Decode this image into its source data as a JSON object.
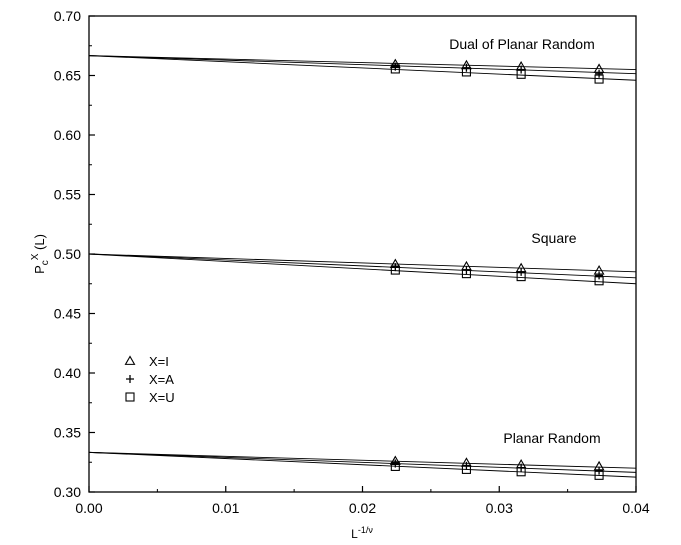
{
  "chart_data": {
    "type": "scatter",
    "xlabel": "L",
    "xlabel_sup": "-1/ν",
    "ylabel": "P",
    "ylabel_sub": "c",
    "ylabel_sup": "X",
    "ylabel_suffix": " (L)",
    "xlim": [
      0.0,
      0.04
    ],
    "ylim": [
      0.3,
      0.7
    ],
    "x_ticks": [
      "0.00",
      "0.01",
      "0.02",
      "0.03",
      "0.04"
    ],
    "x_tick_values": [
      0.0,
      0.01,
      0.02,
      0.03,
      0.04
    ],
    "y_ticks": [
      "0.30",
      "0.35",
      "0.40",
      "0.45",
      "0.50",
      "0.55",
      "0.60",
      "0.65",
      "0.70"
    ],
    "y_tick_values": [
      0.3,
      0.35,
      0.4,
      0.45,
      0.5,
      0.55,
      0.6,
      0.65,
      0.7
    ],
    "grid": false,
    "legend_position": "lower-left",
    "legend": [
      {
        "marker": "triangle",
        "label": "X=I"
      },
      {
        "marker": "plus",
        "label": "X=A"
      },
      {
        "marker": "square",
        "label": "X=U"
      }
    ],
    "groups": [
      {
        "label": "Dual of Planar Random",
        "x": [
          0.0224,
          0.0276,
          0.0316,
          0.0373
        ],
        "series": [
          {
            "name": "X=I",
            "marker": "triangle",
            "y": [
              0.6595,
              0.6585,
              0.6575,
              0.6555
            ],
            "fit": [
              0.6667,
              0.655
            ]
          },
          {
            "name": "X=A",
            "marker": "plus",
            "y": [
              0.6575,
              0.6565,
              0.655,
              0.6515
            ],
            "fit": [
              0.6667,
              0.6515
            ]
          },
          {
            "name": "X=U",
            "marker": "square",
            "y": [
              0.6555,
              0.653,
              0.651,
              0.647
            ],
            "fit": [
              0.6667,
              0.646
            ]
          }
        ]
      },
      {
        "label": "Square",
        "x": [
          0.0224,
          0.0276,
          0.0316,
          0.0373
        ],
        "series": [
          {
            "name": "X=I",
            "marker": "triangle",
            "y": [
              0.4915,
              0.4895,
              0.488,
              0.486
            ],
            "fit": [
              0.5,
              0.485
            ]
          },
          {
            "name": "X=A",
            "marker": "plus",
            "y": [
              0.489,
              0.4865,
              0.485,
              0.482
            ],
            "fit": [
              0.5,
              0.48
            ]
          },
          {
            "name": "X=U",
            "marker": "square",
            "y": [
              0.4865,
              0.4835,
              0.481,
              0.4775
            ],
            "fit": [
              0.5,
              0.475
            ]
          }
        ]
      },
      {
        "label": "Planar Random",
        "x": [
          0.0224,
          0.0276,
          0.0316,
          0.0373
        ],
        "series": [
          {
            "name": "X=I",
            "marker": "triangle",
            "y": [
              0.326,
              0.3245,
              0.323,
              0.3215
            ],
            "fit": [
              0.3333,
              0.32
            ]
          },
          {
            "name": "X=A",
            "marker": "plus",
            "y": [
              0.324,
              0.322,
              0.3205,
              0.318
            ],
            "fit": [
              0.3333,
              0.3165
            ]
          },
          {
            "name": "X=U",
            "marker": "square",
            "y": [
              0.3215,
              0.319,
              0.317,
              0.314
            ],
            "fit": [
              0.3333,
              0.3125
            ]
          }
        ]
      }
    ]
  }
}
